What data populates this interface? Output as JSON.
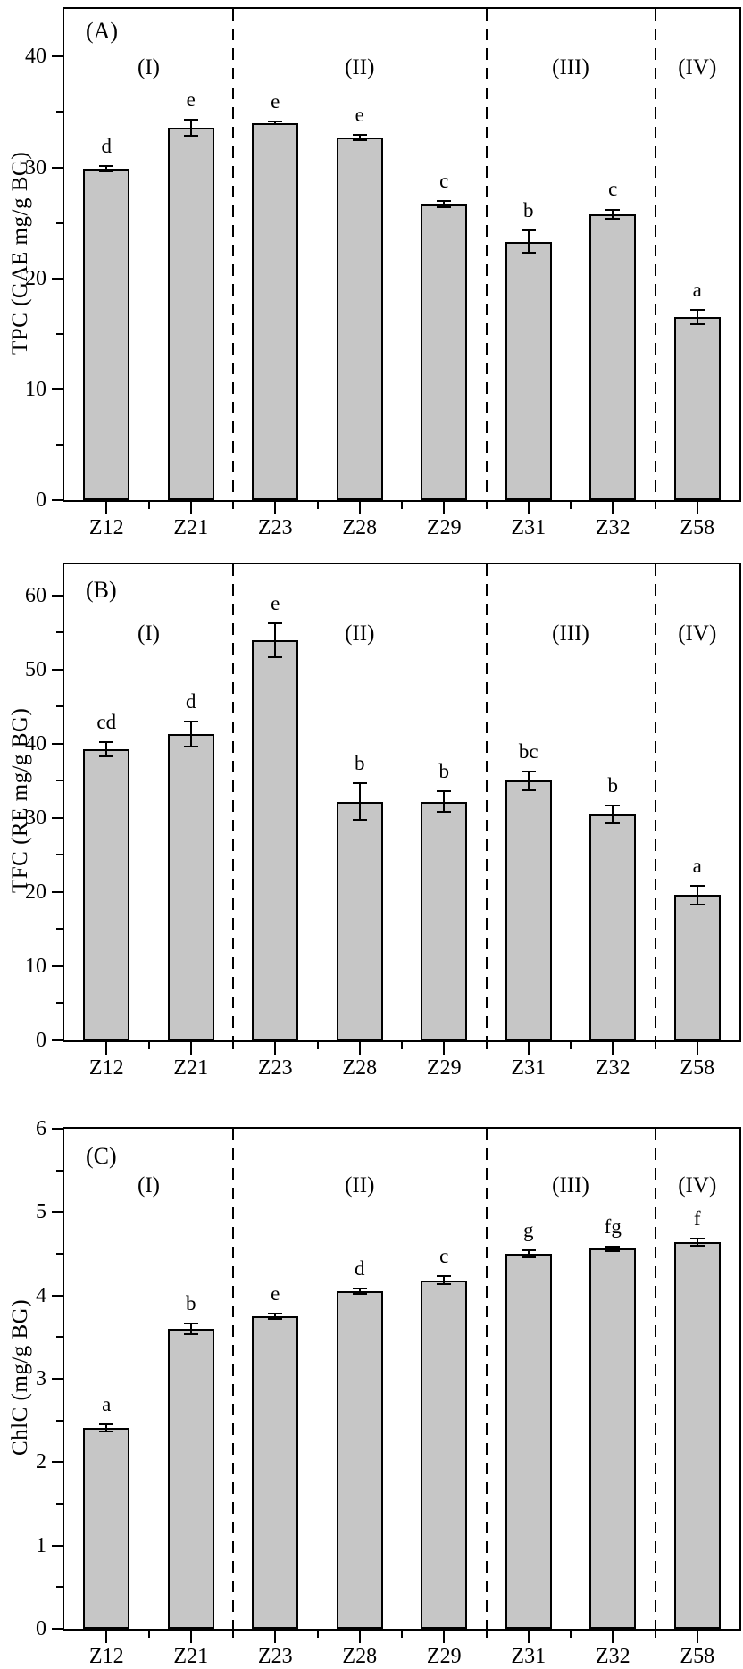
{
  "figure": {
    "background": "#ffffff",
    "bar_fill": "#c6c6c6",
    "bar_border": "#000000",
    "text_color": "#000000",
    "separator_style": "dashed"
  },
  "chart_data": [
    {
      "type": "bar",
      "panel_label": "(A)",
      "ylabel": "TPC (GAE mg/g BG)",
      "xlabel": "",
      "categories": [
        "Z12",
        "Z21",
        "Z23",
        "Z28",
        "Z29",
        "Z31",
        "Z32",
        "Z58"
      ],
      "values": [
        29.9,
        33.6,
        34.0,
        32.7,
        26.7,
        23.3,
        25.8,
        16.5
      ],
      "errors": [
        0.3,
        0.8,
        0.2,
        0.3,
        0.4,
        1.1,
        0.5,
        0.7
      ],
      "sig_letters": [
        "d",
        "e",
        "e",
        "e",
        "c",
        "b",
        "c",
        "a"
      ],
      "groups": [
        {
          "label": "(I)",
          "members": [
            0,
            1
          ]
        },
        {
          "label": "(II)",
          "members": [
            2,
            3,
            4
          ]
        },
        {
          "label": "(III)",
          "members": [
            5,
            6
          ]
        },
        {
          "label": "(IV)",
          "members": [
            7
          ]
        }
      ],
      "separators_after": [
        1,
        4,
        6
      ],
      "ylim": [
        0,
        44.3
      ],
      "yticks": [
        0,
        10,
        20,
        30,
        40
      ],
      "minor_step": 5,
      "grid": false,
      "legend": null
    },
    {
      "type": "bar",
      "panel_label": "(B)",
      "ylabel": "TFC (RE mg/g BG)",
      "xlabel": "",
      "categories": [
        "Z12",
        "Z21",
        "Z23",
        "Z28",
        "Z29",
        "Z31",
        "Z32",
        "Z58"
      ],
      "values": [
        39.3,
        41.3,
        54.0,
        32.2,
        32.2,
        35.0,
        30.5,
        19.6
      ],
      "errors": [
        1.1,
        1.8,
        2.4,
        2.6,
        1.5,
        1.4,
        1.3,
        1.4
      ],
      "sig_letters": [
        "cd",
        "d",
        "e",
        "b",
        "b",
        "bc",
        "b",
        "a"
      ],
      "groups": [
        {
          "label": "(I)",
          "members": [
            0,
            1
          ]
        },
        {
          "label": "(II)",
          "members": [
            2,
            3,
            4
          ]
        },
        {
          "label": "(III)",
          "members": [
            5,
            6
          ]
        },
        {
          "label": "(IV)",
          "members": [
            7
          ]
        }
      ],
      "separators_after": [
        1,
        4,
        6
      ],
      "ylim": [
        0,
        64.2
      ],
      "yticks": [
        0,
        10,
        20,
        30,
        40,
        50,
        60
      ],
      "minor_step": 5,
      "grid": false,
      "legend": null
    },
    {
      "type": "bar",
      "panel_label": "(C)",
      "ylabel": "ChlC (mg/g BG)",
      "xlabel": "",
      "categories": [
        "Z12",
        "Z21",
        "Z23",
        "Z28",
        "Z29",
        "Z31",
        "Z32",
        "Z58"
      ],
      "values": [
        2.41,
        3.6,
        3.75,
        4.05,
        4.18,
        4.5,
        4.56,
        4.64
      ],
      "errors": [
        0.05,
        0.07,
        0.04,
        0.04,
        0.06,
        0.05,
        0.04,
        0.05
      ],
      "sig_letters": [
        "a",
        "b",
        "e",
        "d",
        "c",
        "g",
        "fg",
        "f"
      ],
      "groups": [
        {
          "label": "(I)",
          "members": [
            0,
            1
          ]
        },
        {
          "label": "(II)",
          "members": [
            2,
            3,
            4
          ]
        },
        {
          "label": "(III)",
          "members": [
            5,
            6
          ]
        },
        {
          "label": "(IV)",
          "members": [
            7
          ]
        }
      ],
      "separators_after": [
        1,
        4,
        6
      ],
      "ylim": [
        0,
        6
      ],
      "yticks": [
        0,
        1,
        2,
        3,
        4,
        5,
        6
      ],
      "minor_step": 0.5,
      "grid": false,
      "legend": null
    }
  ]
}
